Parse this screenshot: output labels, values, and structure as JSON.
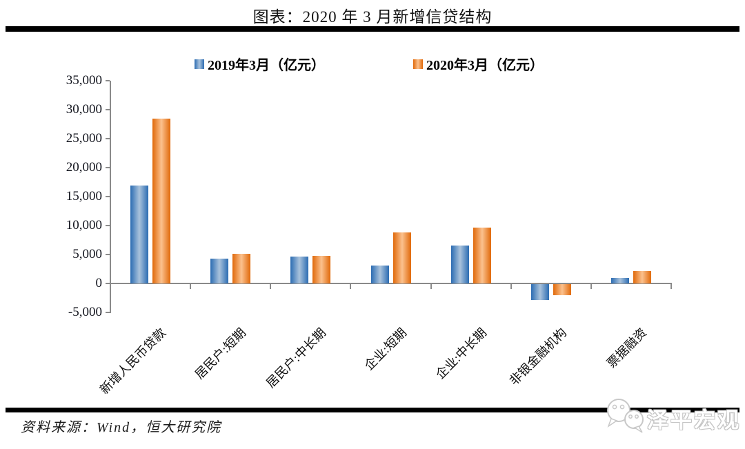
{
  "header": {
    "title": "图表：2020 年 3 月新增信贷结构"
  },
  "footer": {
    "source": "资料来源：Wind，恒大研究院"
  },
  "watermark": {
    "label": "泽平宏观",
    "icon": "wechat-bubbles-icon"
  },
  "colors": {
    "series_2019_edge": "#2B6CB2",
    "series_2019_center": "#A9C2DC",
    "series_2020_edge": "#E0690A",
    "series_2020_center": "#FBC18E",
    "axis": "#8A8A8A",
    "rule": "#000000"
  },
  "chart_data": {
    "type": "bar",
    "title": "图表：2020 年 3 月新增信贷结构",
    "categories": [
      "新增人民币贷款",
      "居民户:短期",
      "居民户:中长期",
      "企业:短期",
      "企业:中长期",
      "非银金融机构",
      "票据融资"
    ],
    "series": [
      {
        "name": "2019年3月（亿元）",
        "values": [
          16900,
          4294,
          4605,
          3101,
          6573,
          -2714,
          978
        ],
        "color_edge": "#2B6CB2",
        "color_center": "#A9C2DC"
      },
      {
        "name": "2020年3月（亿元）",
        "values": [
          28500,
          5144,
          4738,
          8752,
          9643,
          -1948,
          2109
        ],
        "color_edge": "#E0690A",
        "color_center": "#FBC18E"
      }
    ],
    "xlabel": "",
    "ylabel": "",
    "ylim": [
      -5000,
      35000
    ],
    "ytick_step": 5000,
    "yticks": [
      {
        "value": 35000,
        "label": "35,000"
      },
      {
        "value": 30000,
        "label": "30,000"
      },
      {
        "value": 25000,
        "label": "25,000"
      },
      {
        "value": 20000,
        "label": "20,000"
      },
      {
        "value": 15000,
        "label": "15,000"
      },
      {
        "value": 10000,
        "label": "10,000"
      },
      {
        "value": 5000,
        "label": "5,000"
      },
      {
        "value": 0,
        "label": "0"
      },
      {
        "value": -5000,
        "label": "-5,000"
      }
    ],
    "grid": false,
    "legend_position": "top"
  }
}
